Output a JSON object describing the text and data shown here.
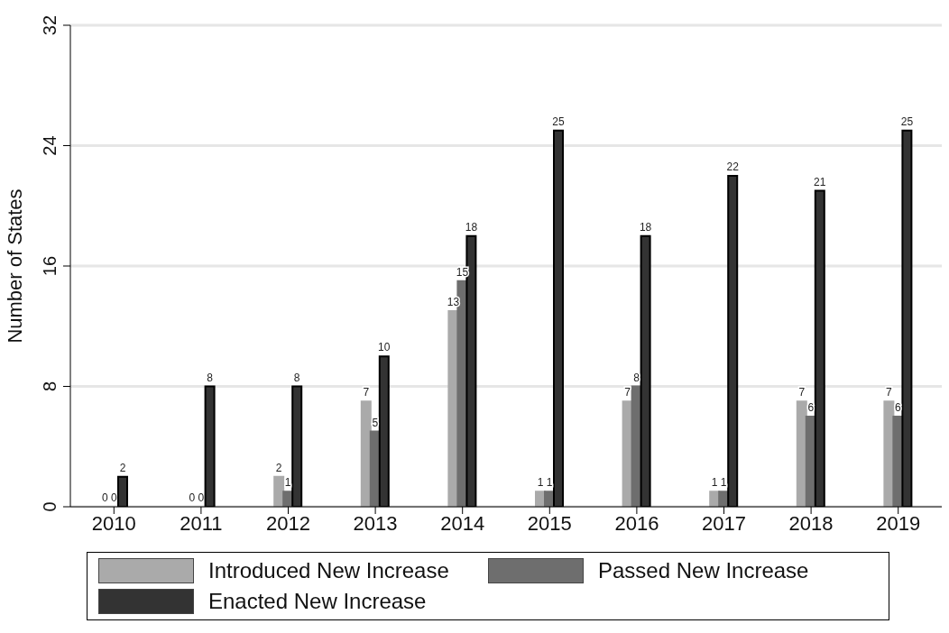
{
  "chart_data": {
    "type": "bar",
    "ylabel": "Number of States",
    "categories": [
      "2010",
      "2011",
      "2012",
      "2013",
      "2014",
      "2015",
      "2016",
      "2017",
      "2018",
      "2019"
    ],
    "series": [
      {
        "name": "Introduced New Increase",
        "color": "#aaaaaa",
        "values": [
          0,
          0,
          2,
          7,
          13,
          1,
          7,
          1,
          7,
          7
        ]
      },
      {
        "name": "Passed New Increase",
        "color": "#6e6e6e",
        "values": [
          0,
          0,
          1,
          5,
          15,
          1,
          8,
          1,
          6,
          6
        ]
      },
      {
        "name": "Enacted New Increase",
        "color": "#333333",
        "values": [
          2,
          8,
          8,
          10,
          18,
          25,
          18,
          22,
          21,
          25
        ]
      }
    ],
    "ylim": [
      0,
      32
    ],
    "yticks": [
      0,
      8,
      16,
      24,
      32
    ],
    "grid": "y",
    "legend": "bottom",
    "data_labels": true
  }
}
